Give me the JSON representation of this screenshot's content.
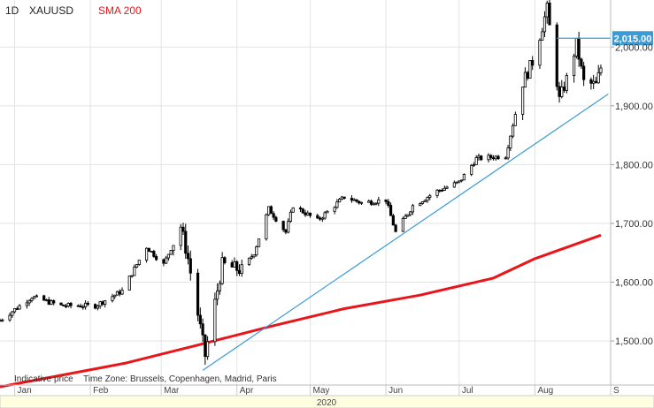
{
  "header": {
    "timeframe": "1D",
    "symbol": "XAUUSD",
    "indicator": "SMA 200"
  },
  "footer": {
    "indicative": "Indicative price",
    "timezone": "Time Zone: Brussels, Copenhagen, Madrid, Paris",
    "year": "2020"
  },
  "price_tag": "2,015.00",
  "colors": {
    "up": "#ffffff",
    "down": "#000000",
    "wick": "#000000",
    "sma": "#e8161b",
    "trendline": "#3a9bd6",
    "price_tag_bg": "#3a9bd6",
    "grid": "#e3e3e3"
  },
  "chart_data": {
    "type": "candlestick",
    "y_axis": {
      "ticks": [
        1500,
        1600,
        1700,
        1800,
        1900,
        2000
      ],
      "tick_labels": [
        "1,500.00",
        "1,600.00",
        "1,700.00",
        "1,800.00",
        "1,900.00",
        "2,000.00"
      ],
      "range": [
        1425,
        2080
      ]
    },
    "x_axis": {
      "labels": [
        "Jan",
        "Feb",
        "Mar",
        "Apr",
        "May",
        "Jun",
        "Jul",
        "Aug",
        "S"
      ],
      "range": [
        "2019-12-26",
        "2020-09-01"
      ]
    },
    "grid": true,
    "anchors": [
      {
        "date": "2019-12-26",
        "close": 1535
      },
      {
        "date": "2020-01-08",
        "close": 1575
      },
      {
        "date": "2020-01-20",
        "close": 1560
      },
      {
        "date": "2020-02-03",
        "close": 1560
      },
      {
        "date": "2020-02-14",
        "close": 1585
      },
      {
        "date": "2020-02-24",
        "close": 1660
      },
      {
        "date": "2020-03-02",
        "close": 1630
      },
      {
        "date": "2020-03-09",
        "close": 1695
      },
      {
        "date": "2020-03-12",
        "close": 1640
      },
      {
        "date": "2020-03-19",
        "close": 1475
      },
      {
        "date": "2020-03-23",
        "close": 1565
      },
      {
        "date": "2020-03-26",
        "close": 1630
      },
      {
        "date": "2020-04-03",
        "close": 1620
      },
      {
        "date": "2020-04-08",
        "close": 1650
      },
      {
        "date": "2020-04-14",
        "close": 1725
      },
      {
        "date": "2020-04-21",
        "close": 1685
      },
      {
        "date": "2020-04-24",
        "close": 1730
      },
      {
        "date": "2020-05-04",
        "close": 1705
      },
      {
        "date": "2020-05-15",
        "close": 1745
      },
      {
        "date": "2020-05-22",
        "close": 1735
      },
      {
        "date": "2020-06-01",
        "close": 1740
      },
      {
        "date": "2020-06-05",
        "close": 1685
      },
      {
        "date": "2020-06-12",
        "close": 1730
      },
      {
        "date": "2020-06-22",
        "close": 1755
      },
      {
        "date": "2020-07-01",
        "close": 1770
      },
      {
        "date": "2020-07-08",
        "close": 1810
      },
      {
        "date": "2020-07-20",
        "close": 1815
      },
      {
        "date": "2020-07-27",
        "close": 1940
      },
      {
        "date": "2020-07-31",
        "close": 1975
      },
      {
        "date": "2020-08-06",
        "close": 2065
      },
      {
        "date": "2020-08-11",
        "close": 1910
      },
      {
        "date": "2020-08-14",
        "close": 1945
      },
      {
        "date": "2020-08-18",
        "close": 2005
      },
      {
        "date": "2020-08-21",
        "close": 1940
      },
      {
        "date": "2020-08-26",
        "close": 1935
      },
      {
        "date": "2020-08-28",
        "close": 1965
      }
    ],
    "sma_200": [
      {
        "date": "2019-12-26",
        "value": 1422
      },
      {
        "date": "2020-02-15",
        "value": 1462
      },
      {
        "date": "2020-03-15",
        "value": 1492
      },
      {
        "date": "2020-04-15",
        "value": 1525
      },
      {
        "date": "2020-05-15",
        "value": 1555
      },
      {
        "date": "2020-06-15",
        "value": 1578
      },
      {
        "date": "2020-07-15",
        "value": 1607
      },
      {
        "date": "2020-08-01",
        "value": 1640
      },
      {
        "date": "2020-08-28",
        "value": 1680
      }
    ],
    "trendline": [
      {
        "date": "2020-03-18",
        "value": 1450
      },
      {
        "date": "2020-08-31",
        "value": 1920
      }
    ],
    "horizontal_level": {
      "value": 2015,
      "from": "2020-08-10",
      "to": "2020-09-01"
    },
    "series": [
      {
        "name": "XAUUSD",
        "kind": "candles"
      },
      {
        "name": "SMA 200",
        "kind": "line"
      }
    ]
  }
}
